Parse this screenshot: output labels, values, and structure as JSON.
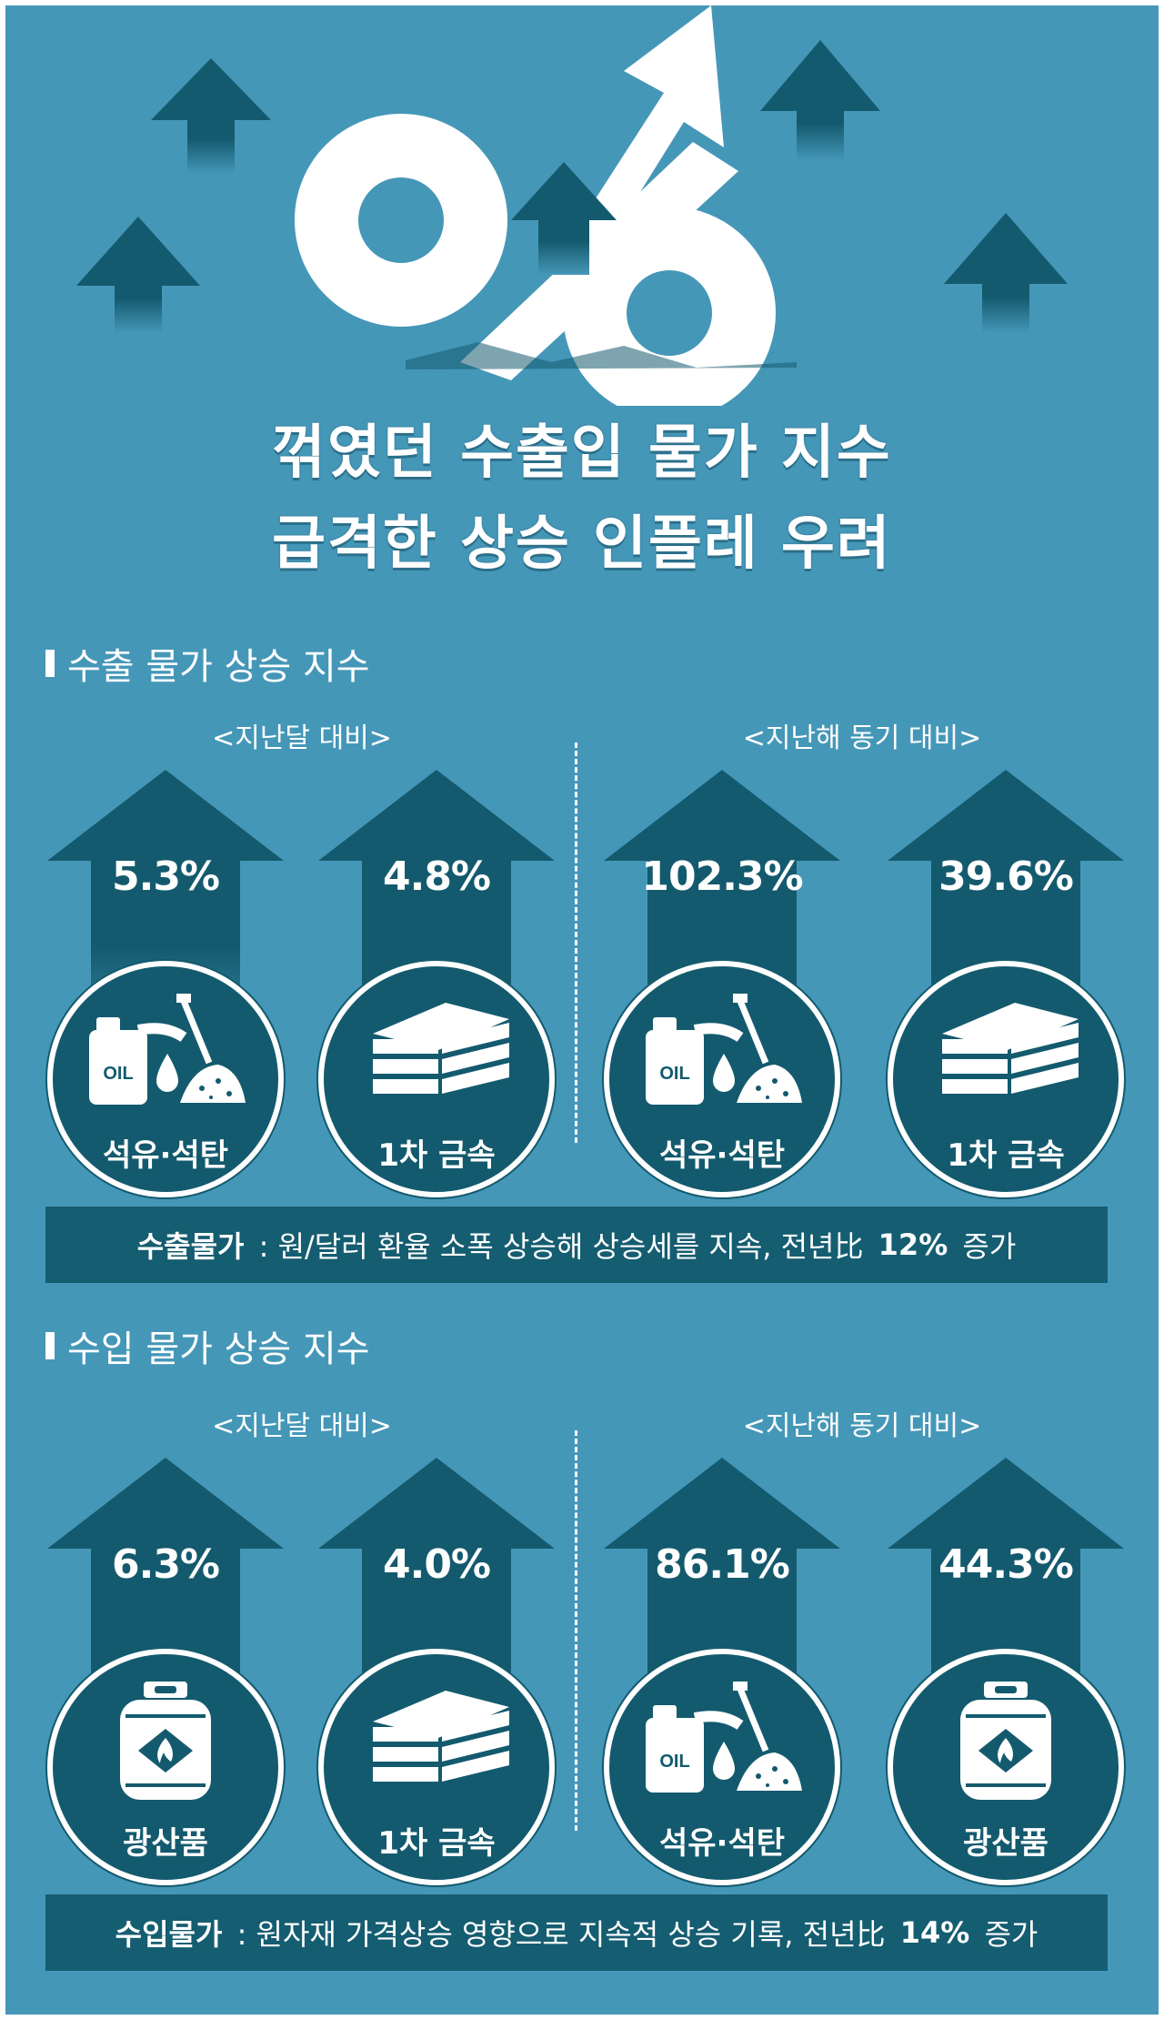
{
  "title": {
    "line1": "꺾였던 수출입 물가 지수",
    "line2": "급격한 상승 인플레 우려"
  },
  "colors": {
    "background": "#4597b8",
    "dark": "#145a6e",
    "white": "#ffffff"
  },
  "export": {
    "heading": "수출 물가 상승 지수",
    "left_label": "<지난달 대비>",
    "right_label": "<지난해 동기 대비>",
    "items": [
      {
        "pct": "5.3%",
        "caption": "석유·석탄",
        "icon": "oil-coal-icon"
      },
      {
        "pct": "4.8%",
        "caption": "1차 금속",
        "icon": "metal-ingot-icon"
      },
      {
        "pct": "102.3%",
        "caption": "석유·석탄",
        "icon": "oil-coal-icon"
      },
      {
        "pct": "39.6%",
        "caption": "1차 금속",
        "icon": "metal-ingot-icon"
      }
    ],
    "summary_bold": "수출물가",
    "summary_text": " : 원/달러 환율 소폭 상승해 상승세를 지속, 전년比 ",
    "summary_num": "12%",
    "summary_end": " 증가"
  },
  "import": {
    "heading": "수입 물가 상승 지수",
    "left_label": "<지난달 대비>",
    "right_label": "<지난해 동기 대비>",
    "items": [
      {
        "pct": "6.3%",
        "caption": "광산품",
        "icon": "gas-cylinder-icon"
      },
      {
        "pct": "4.0%",
        "caption": "1차 금속",
        "icon": "metal-ingot-icon"
      },
      {
        "pct": "86.1%",
        "caption": "석유·석탄",
        "icon": "oil-coal-icon"
      },
      {
        "pct": "44.3%",
        "caption": "광산품",
        "icon": "gas-cylinder-icon"
      }
    ],
    "summary_bold": "수입물가",
    "summary_text": " : 원자재 가격상승 영향으로 지속적 상승 기록, 전년比 ",
    "summary_num": "14%",
    "summary_end": " 증가"
  },
  "icon_text": {
    "oil": "OIL"
  }
}
